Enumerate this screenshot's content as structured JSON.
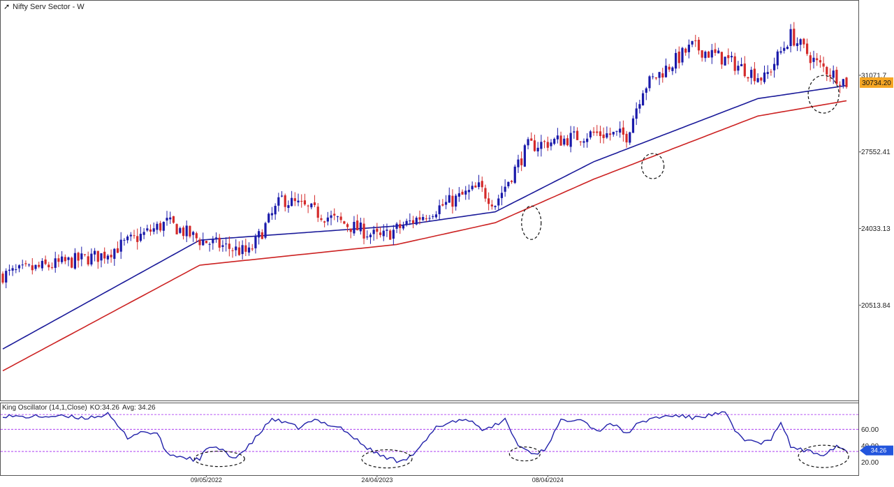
{
  "header": {
    "title": "Nifty Serv Sector - W"
  },
  "oscillator_header": {
    "name": "King Oscillator (14,1,Close)",
    "ko": "KO:34.26",
    "avg": "Avg: 34.26"
  },
  "colors": {
    "up_candle": "#1a1aaa",
    "down_candle": "#d42a2a",
    "ma_fast": "#1a1a99",
    "ma_slow": "#cc2222",
    "oscillator": "#2222aa",
    "price_tag_bg": "#f5a623",
    "osc_tag_bg": "#2255dd",
    "guide_line": "#a020f0"
  },
  "chart_data": [
    {
      "type": "candlestick",
      "title": "Nifty Serv Sector - W",
      "ylim": [
        16200,
        34400
      ],
      "y_ticks": [
        "31071.7",
        "27552.41",
        "24033.13",
        "20513.84"
      ],
      "x_ticks": [
        "09/05/2022",
        "24/04/2023",
        "08/04/2024"
      ],
      "last_price": "30734.20",
      "trend_anchors": [
        [
          0,
          21900
        ],
        [
          30,
          22800
        ],
        [
          50,
          24300
        ],
        [
          60,
          23500
        ],
        [
          75,
          22900
        ],
        [
          85,
          25400
        ],
        [
          100,
          24500
        ],
        [
          115,
          23600
        ],
        [
          130,
          24800
        ],
        [
          145,
          25900
        ],
        [
          150,
          25200
        ],
        [
          160,
          27800
        ],
        [
          180,
          28400
        ],
        [
          190,
          28300
        ],
        [
          195,
          30500
        ],
        [
          210,
          32400
        ],
        [
          220,
          31800
        ],
        [
          232,
          30900
        ],
        [
          240,
          32900
        ],
        [
          248,
          31600
        ],
        [
          257,
          30734
        ]
      ],
      "series": [
        {
          "name": "",
          "values": [
            [
              0,
              18500
            ],
            [
              60,
              23500
            ],
            [
              120,
              24150
            ],
            [
              150,
              24800
            ],
            [
              180,
              27100
            ],
            [
              230,
              30000
            ],
            [
              257,
              30600
            ]
          ]
        },
        {
          "name": "",
          "values": [
            [
              0,
              17500
            ],
            [
              60,
              22350
            ],
            [
              120,
              23300
            ],
            [
              150,
              24300
            ],
            [
              180,
              26300
            ],
            [
              230,
              29200
            ],
            [
              257,
              29900
            ]
          ]
        }
      ],
      "annotations": [
        "ellipse around candle at week 161",
        "ellipse around candle at week 198",
        "ellipse around latest candles"
      ]
    },
    {
      "type": "line",
      "title": "King Oscillator (14,1,Close)",
      "ylim": [
        5,
        90
      ],
      "y_ticks": [
        "60.00",
        "40.00",
        "20.00"
      ],
      "guide_levels": [
        78,
        60,
        33
      ],
      "last_value": "34.26",
      "anchors": [
        [
          0,
          77
        ],
        [
          5,
          75
        ],
        [
          15,
          76
        ],
        [
          25,
          74
        ],
        [
          32,
          78
        ],
        [
          38,
          50
        ],
        [
          42,
          57
        ],
        [
          47,
          55
        ],
        [
          50,
          30
        ],
        [
          60,
          22
        ],
        [
          62,
          38
        ],
        [
          66,
          36
        ],
        [
          70,
          25
        ],
        [
          74,
          35
        ],
        [
          82,
          73
        ],
        [
          90,
          62
        ],
        [
          95,
          71
        ],
        [
          103,
          62
        ],
        [
          110,
          40
        ],
        [
          115,
          28
        ],
        [
          120,
          22
        ],
        [
          123,
          25
        ],
        [
          126,
          32
        ],
        [
          132,
          62
        ],
        [
          137,
          70
        ],
        [
          142,
          72
        ],
        [
          147,
          58
        ],
        [
          153,
          72
        ],
        [
          157,
          40
        ],
        [
          162,
          30
        ],
        [
          165,
          35
        ],
        [
          170,
          70
        ],
        [
          176,
          74
        ],
        [
          181,
          57
        ],
        [
          185,
          68
        ],
        [
          190,
          55
        ],
        [
          193,
          65
        ],
        [
          198,
          74
        ],
        [
          205,
          77
        ],
        [
          210,
          74
        ],
        [
          220,
          80
        ],
        [
          223,
          58
        ],
        [
          226,
          48
        ],
        [
          230,
          43
        ],
        [
          234,
          46
        ],
        [
          237,
          70
        ],
        [
          240,
          39
        ],
        [
          245,
          33
        ],
        [
          250,
          30
        ],
        [
          254,
          40
        ],
        [
          257,
          34
        ]
      ]
    }
  ]
}
